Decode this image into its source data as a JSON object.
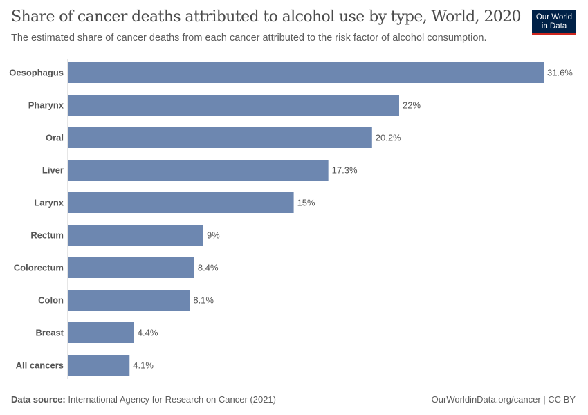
{
  "header": {
    "title": "Share of cancer deaths attributed to alcohol use by type, World, 2020",
    "subtitle": "The estimated share of cancer deaths from each cancer attributed to the risk factor of alcohol consumption.",
    "logo_text": "Our World in Data"
  },
  "footer": {
    "source_label": "Data source:",
    "source": "International Agency for Research on Cancer (2021)",
    "url": "OurWorldinData.org/cancer | CC BY"
  },
  "colors": {
    "bar": "#6d87b0",
    "logo_bg": "#002147",
    "logo_accent": "#ce261e"
  },
  "chart_data": {
    "type": "bar",
    "orientation": "horizontal",
    "title": "Share of cancer deaths attributed to alcohol use by type, World, 2020",
    "categories": [
      "Oesophagus",
      "Pharynx",
      "Oral",
      "Liver",
      "Larynx",
      "Rectum",
      "Colorectum",
      "Colon",
      "Breast",
      "All cancers"
    ],
    "values": [
      31.6,
      22,
      20.2,
      17.3,
      15,
      9,
      8.4,
      8.1,
      4.4,
      4.1
    ],
    "labels": [
      "31.6%",
      "22%",
      "20.2%",
      "17.3%",
      "15%",
      "9%",
      "8.4%",
      "8.1%",
      "4.4%",
      "4.1%"
    ],
    "unit": "%",
    "xlim": [
      0,
      31.6
    ],
    "grid": false
  }
}
